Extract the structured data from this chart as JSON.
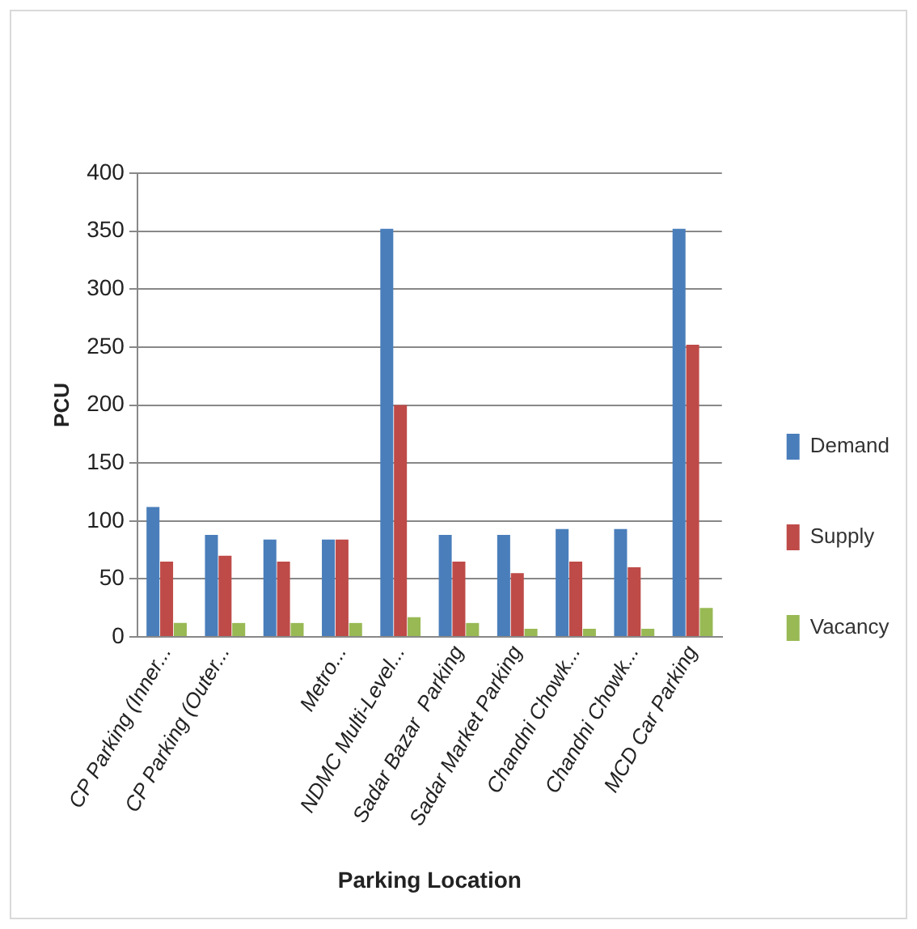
{
  "chart_data": {
    "type": "bar",
    "xlabel": "Parking Location",
    "ylabel": "PCU",
    "categories": [
      "CP Parking (Inner...",
      "CP Parking (Outer...",
      null,
      "Metro...",
      "NDMC Multi-Level...",
      "Sadar Bazar  Parking",
      "Sadar Market Parking",
      "Chandni Chowk...",
      "Chandni Chowk...",
      "MCD Car Parking"
    ],
    "series": [
      {
        "name": "Demand",
        "color": "#4a7ebb",
        "values": [
          112,
          88,
          84,
          84,
          352,
          88,
          88,
          93,
          93,
          352
        ]
      },
      {
        "name": "Supply",
        "color": "#be4b48",
        "values": [
          65,
          70,
          65,
          84,
          200,
          65,
          55,
          65,
          60,
          252
        ]
      },
      {
        "name": "Vacancy",
        "color": "#98b954",
        "values": [
          12,
          12,
          12,
          12,
          17,
          12,
          7,
          7,
          7,
          25
        ]
      }
    ],
    "ylim": [
      0,
      400
    ],
    "yticks": [
      0,
      50,
      100,
      150,
      200,
      250,
      300,
      350,
      400
    ],
    "grid": "y",
    "legend": "right"
  }
}
